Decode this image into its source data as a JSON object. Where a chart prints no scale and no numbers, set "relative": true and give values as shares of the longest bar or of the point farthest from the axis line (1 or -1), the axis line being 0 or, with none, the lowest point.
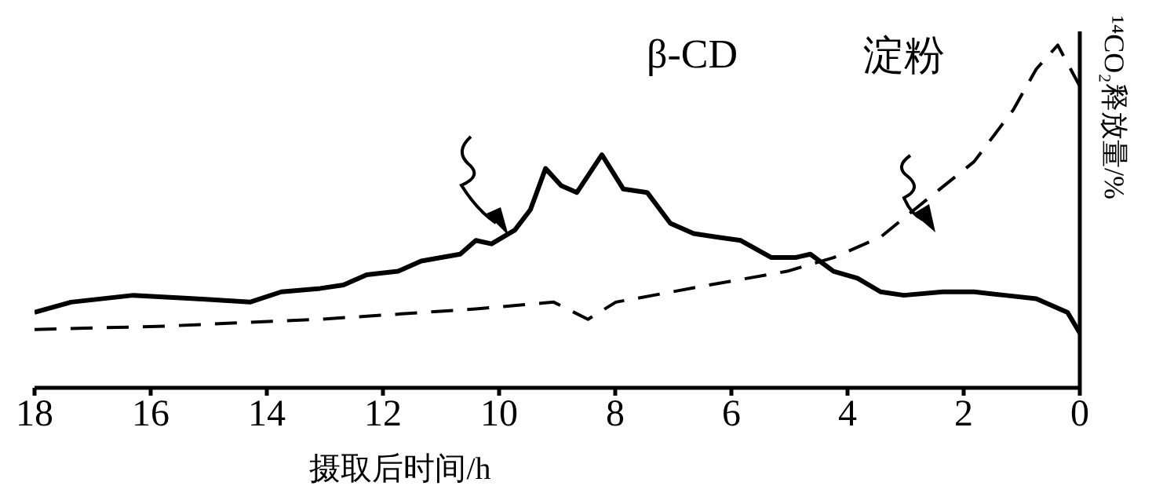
{
  "chart_data": {
    "type": "line",
    "xlabel": "摄取后时间/h",
    "ylabel": "¹⁴CO₂释放量/%",
    "relative": true,
    "xlim": [
      18,
      0
    ],
    "xticks": [
      18,
      16,
      14,
      12,
      10,
      8,
      6,
      4,
      2,
      0
    ],
    "marker": "none",
    "series": [
      {
        "name": "β-CD",
        "color": "#000000",
        "line_style": "solid",
        "x": [
          18,
          17.37,
          16.3,
          15.23,
          14.29,
          13.75,
          13.08,
          12.68,
          12.28,
          11.74,
          11.34,
          10.67,
          10.4,
          10.13,
          9.73,
          9.46,
          9.2,
          8.93,
          8.66,
          8.23,
          7.86,
          7.45,
          7.05,
          6.65,
          6.25,
          5.84,
          5.31,
          4.9,
          4.64,
          4.24,
          3.83,
          3.43,
          3.03,
          2.36,
          1.82,
          1.29,
          0.75,
          0.21,
          0
        ],
        "values": [
          0.22,
          0.25,
          0.27,
          0.26,
          0.25,
          0.28,
          0.29,
          0.3,
          0.33,
          0.34,
          0.37,
          0.39,
          0.43,
          0.42,
          0.46,
          0.52,
          0.64,
          0.59,
          0.57,
          0.68,
          0.58,
          0.57,
          0.48,
          0.45,
          0.44,
          0.43,
          0.38,
          0.38,
          0.39,
          0.34,
          0.32,
          0.28,
          0.27,
          0.28,
          0.28,
          0.27,
          0.26,
          0.22,
          0.16
        ]
      },
      {
        "name": "淀粉",
        "color": "#000000",
        "line_style": "dashed",
        "x": [
          18,
          15.76,
          13.08,
          10.4,
          9.06,
          8.47,
          7.99,
          6.38,
          5.04,
          4.24,
          3.43,
          2.63,
          1.82,
          1.15,
          0.75,
          0.38,
          0
        ],
        "values": [
          0.17,
          0.18,
          0.2,
          0.23,
          0.25,
          0.2,
          0.25,
          0.3,
          0.34,
          0.38,
          0.44,
          0.55,
          0.66,
          0.81,
          0.93,
          1,
          0.88
        ]
      }
    ]
  }
}
